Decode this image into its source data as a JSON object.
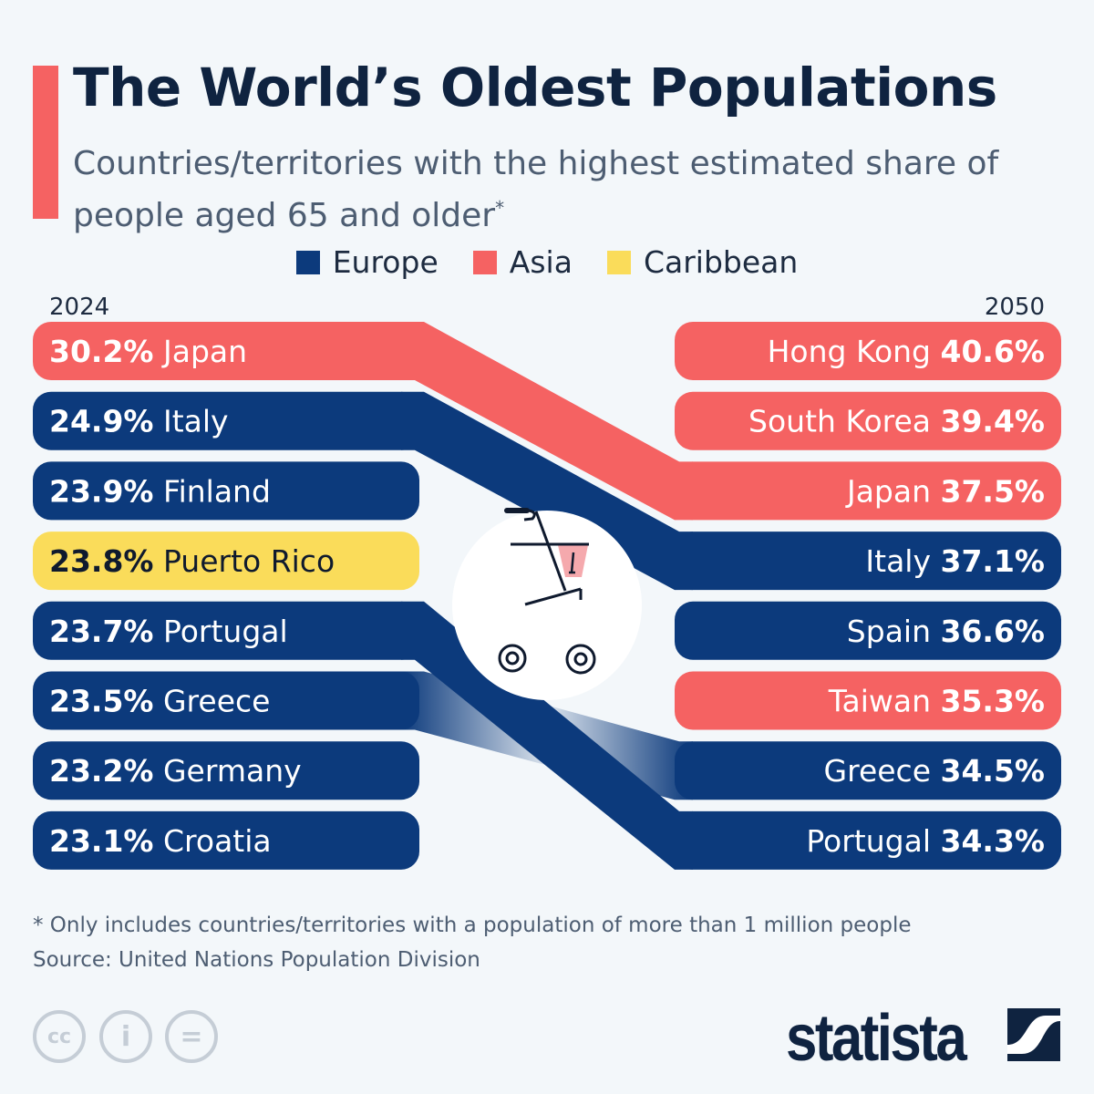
{
  "chart_data": {
    "type": "bar",
    "title": "The World’s Oldest Populations",
    "subtitle": "Countries/territories with the highest estimated share of people aged 65 and older",
    "subtitle_mark": "*",
    "legend_placement": "top",
    "legend": [
      {
        "name": "Europe",
        "color": "#0c3a7c"
      },
      {
        "name": "Asia",
        "color": "#f56262"
      },
      {
        "name": "Caribbean",
        "color": "#fadc5a"
      }
    ],
    "left_header": "2024",
    "right_header": "2050",
    "unit": "%",
    "series_2024": [
      {
        "country": "Japan",
        "value": 30.2,
        "region": "Asia"
      },
      {
        "country": "Italy",
        "value": 24.9,
        "region": "Europe"
      },
      {
        "country": "Finland",
        "value": 23.9,
        "region": "Europe"
      },
      {
        "country": "Puerto Rico",
        "value": 23.8,
        "region": "Caribbean"
      },
      {
        "country": "Portugal",
        "value": 23.7,
        "region": "Europe"
      },
      {
        "country": "Greece",
        "value": 23.5,
        "region": "Europe"
      },
      {
        "country": "Germany",
        "value": 23.2,
        "region": "Europe"
      },
      {
        "country": "Croatia",
        "value": 23.1,
        "region": "Europe"
      }
    ],
    "series_2050": [
      {
        "country": "Hong Kong",
        "value": 40.6,
        "region": "Asia"
      },
      {
        "country": "South Korea",
        "value": 39.4,
        "region": "Asia"
      },
      {
        "country": "Japan",
        "value": 37.5,
        "region": "Asia"
      },
      {
        "country": "Italy",
        "value": 37.1,
        "region": "Europe"
      },
      {
        "country": "Spain",
        "value": 36.6,
        "region": "Europe"
      },
      {
        "country": "Taiwan",
        "value": 35.3,
        "region": "Asia"
      },
      {
        "country": "Greece",
        "value": 34.5,
        "region": "Europe"
      },
      {
        "country": "Portugal",
        "value": 34.3,
        "region": "Europe"
      }
    ],
    "center_icon": "rollator-walker-icon"
  },
  "footer": {
    "note": "* Only includes countries/territories with a population of more than 1 million people",
    "source": "Source: United Nations Population Division",
    "license_icons": [
      "cc-icon",
      "attribution-icon",
      "no-derivatives-icon"
    ],
    "license_labels": [
      "cc",
      "i",
      "="
    ],
    "brand": "statista"
  }
}
